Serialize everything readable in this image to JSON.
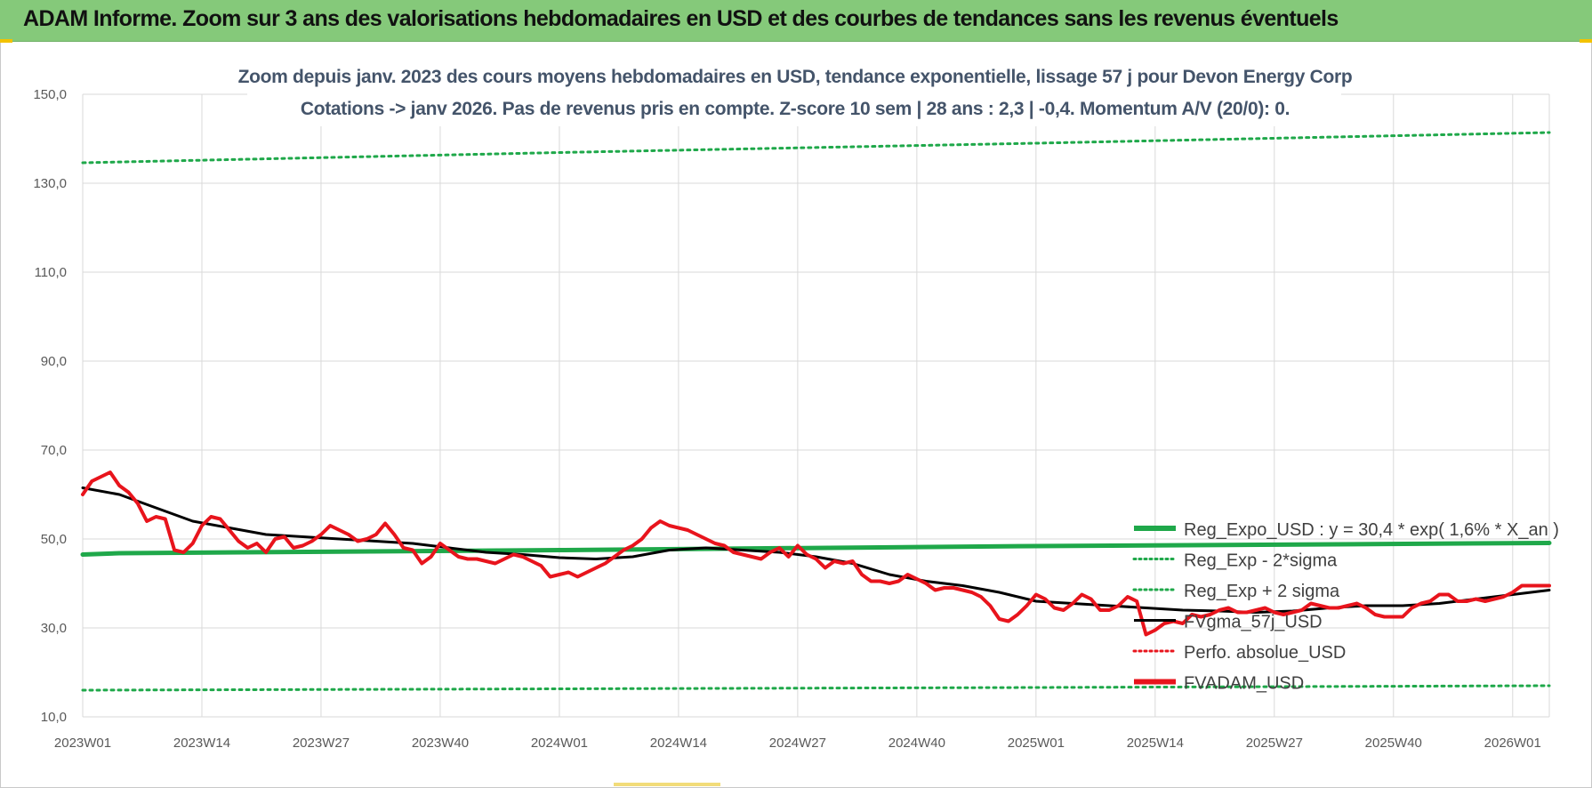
{
  "header": {
    "title": "ADAM Informe. Zoom sur 3 ans des valorisations hebdomadaires en USD et des courbes de tendances sans les revenus éventuels",
    "background": "#85c97a"
  },
  "chart_data": {
    "type": "line",
    "title_lines": [
      "Zoom depuis janv. 2023 des cours moyens hebdomadaires en USD, tendance exponentielle, lissage 57 j pour Devon Energy Corp",
      "Cotations -> janv 2026. Pas de revenus pris en compte. Z-score 10 sem | 28 ans : 2,3 | -0,4. Momentum A/V (20/0): 0."
    ],
    "ylim": [
      10,
      150
    ],
    "y_ticks": [
      "150,0",
      "130,0",
      "110,0",
      "90,0",
      "70,0",
      "50,0",
      "30,0",
      "10,0"
    ],
    "y_tick_values": [
      150,
      130,
      110,
      90,
      70,
      50,
      30,
      10
    ],
    "x_ticks": [
      "2023W01",
      "2023W14",
      "2023W27",
      "2023W40",
      "2024W01",
      "2024W14",
      "2024W27",
      "2024W40",
      "2025W01",
      "2025W14",
      "2025W27",
      "2025W40",
      "2026W01"
    ],
    "x_tick_weeks": [
      0,
      13,
      26,
      39,
      52,
      65,
      78,
      91,
      104,
      117,
      130,
      143,
      156
    ],
    "x_max_week": 160,
    "grid": true,
    "legend_position": "bottom-right",
    "legend": [
      {
        "label": "Reg_Expo_USD : y = 30,4 * exp( 1,6% *  X_an )",
        "color": "#1fa84a",
        "style": "solid-thick"
      },
      {
        "label": "Reg_Exp - 2*sigma",
        "color": "#1fa84a",
        "style": "dotted"
      },
      {
        "label": "Reg_Exp + 2 sigma",
        "color": "#1fa84a",
        "style": "dotted"
      },
      {
        "label": "FVgma_57j_USD",
        "color": "#000000",
        "style": "solid"
      },
      {
        "label": "Perfo. absolue_USD",
        "color": "#e8141c",
        "style": "dotted"
      },
      {
        "label": "FVADAM_USD",
        "color": "#e8141c",
        "style": "solid-thick"
      }
    ],
    "series": [
      {
        "name": "Reg_Expo_USD : y = 30,4 * exp( 1,6% *  X_an )",
        "color": "#1fa84a",
        "dash": "solid",
        "width": 5,
        "x": [
          0,
          4,
          52,
          104,
          160
        ],
        "y": [
          46.5,
          46.8,
          47.5,
          48.4,
          49.1
        ]
      },
      {
        "name": "Reg_Exp + 2 sigma",
        "color": "#1fa84a",
        "dash": "dotted",
        "width": 3,
        "x": [
          0,
          52,
          104,
          160
        ],
        "y": [
          134.6,
          136.9,
          139.0,
          141.4
        ]
      },
      {
        "name": "Reg_Exp - 2*sigma",
        "color": "#1fa84a",
        "dash": "dotted",
        "width": 3,
        "x": [
          0,
          52,
          104,
          160
        ],
        "y": [
          16.0,
          16.3,
          16.6,
          17.0
        ]
      },
      {
        "name": "FVgma_57j_USD",
        "color": "#000000",
        "dash": "solid",
        "width": 3,
        "x": [
          0,
          4,
          8,
          12,
          16,
          20,
          24,
          28,
          32,
          36,
          40,
          44,
          48,
          52,
          56,
          60,
          64,
          68,
          72,
          76,
          80,
          84,
          88,
          92,
          96,
          100,
          104,
          108,
          112,
          116,
          120,
          124,
          128,
          132,
          136,
          140,
          144,
          148,
          152,
          156,
          160
        ],
        "y": [
          61.5,
          60.0,
          57.0,
          54.0,
          52.5,
          51.0,
          50.5,
          50.0,
          49.5,
          49.0,
          48.0,
          47.0,
          46.5,
          45.8,
          45.5,
          46.0,
          47.5,
          48.0,
          47.5,
          47.0,
          46.0,
          44.5,
          42.0,
          40.5,
          39.5,
          38.0,
          36.0,
          35.5,
          35.0,
          34.5,
          34.0,
          33.8,
          33.5,
          33.8,
          34.5,
          35.0,
          35.0,
          35.5,
          36.5,
          37.5,
          38.5
        ]
      },
      {
        "name": "FVADAM_USD",
        "color": "#e8141c",
        "dash": "solid",
        "width": 4,
        "x": [
          0,
          1,
          2,
          3,
          4,
          5,
          6,
          7,
          8,
          9,
          10,
          11,
          12,
          13,
          14,
          15,
          16,
          17,
          18,
          19,
          20,
          21,
          22,
          23,
          24,
          25,
          26,
          27,
          28,
          29,
          30,
          31,
          32,
          33,
          34,
          35,
          36,
          37,
          38,
          39,
          40,
          41,
          42,
          43,
          44,
          45,
          46,
          47,
          48,
          49,
          50,
          51,
          52,
          53,
          54,
          55,
          56,
          57,
          58,
          59,
          60,
          61,
          62,
          63,
          64,
          65,
          66,
          67,
          68,
          69,
          70,
          71,
          72,
          73,
          74,
          75,
          76,
          77,
          78,
          79,
          80,
          81,
          82,
          83,
          84,
          85,
          86,
          87,
          88,
          89,
          90,
          91,
          92,
          93,
          94,
          95,
          96,
          97,
          98,
          99,
          100,
          101,
          102,
          103,
          104,
          105,
          106,
          107,
          108,
          109,
          110,
          111,
          112,
          113,
          114,
          115,
          116,
          117,
          118,
          119,
          120,
          121,
          122,
          123,
          124,
          125,
          126,
          127,
          128,
          129,
          130,
          131,
          132,
          133,
          134,
          135,
          136,
          137,
          138,
          139,
          140,
          141,
          142,
          143,
          144,
          145,
          146,
          147,
          148,
          149,
          150,
          151,
          152,
          153,
          154,
          155,
          156,
          157,
          158,
          159,
          160
        ],
        "y": [
          60.0,
          63.0,
          64.0,
          65.0,
          62.0,
          60.5,
          58.0,
          54.0,
          55.0,
          54.5,
          47.5,
          47.0,
          49.0,
          53.0,
          55.0,
          54.5,
          52.0,
          49.5,
          48.0,
          49.0,
          47.0,
          50.0,
          50.5,
          48.0,
          48.5,
          49.5,
          51.0,
          53.0,
          52.0,
          51.0,
          49.5,
          50.0,
          51.0,
          53.5,
          51.0,
          48.0,
          47.5,
          44.5,
          46.0,
          49.0,
          47.5,
          46.0,
          45.5,
          45.5,
          45.0,
          44.5,
          45.5,
          46.5,
          46.0,
          45.0,
          44.0,
          41.5,
          42.0,
          42.5,
          41.5,
          42.5,
          43.5,
          44.5,
          46.0,
          47.5,
          48.5,
          50.0,
          52.5,
          54.0,
          53.0,
          52.5,
          52.0,
          51.0,
          50.0,
          49.0,
          48.5,
          47.0,
          46.5,
          46.0,
          45.5,
          47.0,
          48.0,
          46.0,
          48.5,
          46.5,
          45.5,
          43.5,
          45.0,
          44.5,
          45.0,
          42.0,
          40.5,
          40.5,
          40.0,
          40.5,
          42.0,
          41.0,
          40.0,
          38.5,
          39.0,
          39.0,
          38.5,
          38.0,
          37.0,
          35.0,
          32.0,
          31.5,
          33.0,
          35.0,
          37.5,
          36.5,
          34.5,
          34.0,
          35.5,
          37.5,
          36.5,
          34.0,
          34.0,
          35.0,
          37.0,
          36.0,
          28.5,
          29.5,
          31.0,
          31.5,
          31.0,
          33.0,
          32.5,
          33.0,
          34.0,
          34.5,
          33.5,
          33.5,
          34.0,
          34.5,
          33.5,
          33.0,
          33.5,
          34.0,
          35.5,
          35.0,
          34.5,
          34.5,
          35.0,
          35.5,
          34.5,
          33.0,
          32.5,
          32.5,
          32.5,
          34.5,
          35.5,
          36.0,
          37.5,
          37.5,
          36.0,
          36.0,
          36.5,
          36.0,
          36.5,
          37.0,
          38.0,
          39.5,
          39.5,
          39.5,
          39.5
        ]
      }
    ]
  }
}
